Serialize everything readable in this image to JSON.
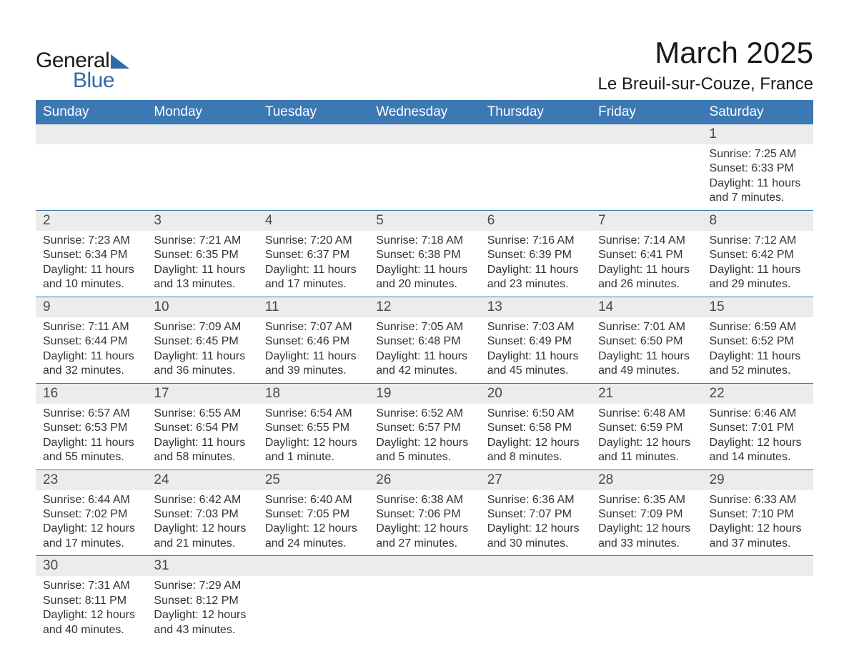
{
  "brand": {
    "word1": "General",
    "word2": "Blue",
    "accent_color": "#2f6ba8"
  },
  "title": "March 2025",
  "location": "Le Breuil-sur-Couze, France",
  "styling": {
    "header_bg": "#3c78b4",
    "header_fg": "#ffffff",
    "daynum_bg": "#ececec",
    "row_divider": "#3c78b4",
    "body_text": "#333333",
    "title_fontsize": 42,
    "location_fontsize": 24,
    "th_fontsize": 19,
    "daynum_fontsize": 19,
    "body_fontsize": 16,
    "page_bg": "#ffffff"
  },
  "weekdays": [
    "Sunday",
    "Monday",
    "Tuesday",
    "Wednesday",
    "Thursday",
    "Friday",
    "Saturday"
  ],
  "labels": {
    "sunrise": "Sunrise: ",
    "sunset": "Sunset: ",
    "daylight": "Daylight: "
  },
  "weeks": [
    [
      {
        "day": ""
      },
      {
        "day": ""
      },
      {
        "day": ""
      },
      {
        "day": ""
      },
      {
        "day": ""
      },
      {
        "day": ""
      },
      {
        "day": "1",
        "sunrise": "7:25 AM",
        "sunset": "6:33 PM",
        "daylight": "11 hours and 7 minutes."
      }
    ],
    [
      {
        "day": "2",
        "sunrise": "7:23 AM",
        "sunset": "6:34 PM",
        "daylight": "11 hours and 10 minutes."
      },
      {
        "day": "3",
        "sunrise": "7:21 AM",
        "sunset": "6:35 PM",
        "daylight": "11 hours and 13 minutes."
      },
      {
        "day": "4",
        "sunrise": "7:20 AM",
        "sunset": "6:37 PM",
        "daylight": "11 hours and 17 minutes."
      },
      {
        "day": "5",
        "sunrise": "7:18 AM",
        "sunset": "6:38 PM",
        "daylight": "11 hours and 20 minutes."
      },
      {
        "day": "6",
        "sunrise": "7:16 AM",
        "sunset": "6:39 PM",
        "daylight": "11 hours and 23 minutes."
      },
      {
        "day": "7",
        "sunrise": "7:14 AM",
        "sunset": "6:41 PM",
        "daylight": "11 hours and 26 minutes."
      },
      {
        "day": "8",
        "sunrise": "7:12 AM",
        "sunset": "6:42 PM",
        "daylight": "11 hours and 29 minutes."
      }
    ],
    [
      {
        "day": "9",
        "sunrise": "7:11 AM",
        "sunset": "6:44 PM",
        "daylight": "11 hours and 32 minutes."
      },
      {
        "day": "10",
        "sunrise": "7:09 AM",
        "sunset": "6:45 PM",
        "daylight": "11 hours and 36 minutes."
      },
      {
        "day": "11",
        "sunrise": "7:07 AM",
        "sunset": "6:46 PM",
        "daylight": "11 hours and 39 minutes."
      },
      {
        "day": "12",
        "sunrise": "7:05 AM",
        "sunset": "6:48 PM",
        "daylight": "11 hours and 42 minutes."
      },
      {
        "day": "13",
        "sunrise": "7:03 AM",
        "sunset": "6:49 PM",
        "daylight": "11 hours and 45 minutes."
      },
      {
        "day": "14",
        "sunrise": "7:01 AM",
        "sunset": "6:50 PM",
        "daylight": "11 hours and 49 minutes."
      },
      {
        "day": "15",
        "sunrise": "6:59 AM",
        "sunset": "6:52 PM",
        "daylight": "11 hours and 52 minutes."
      }
    ],
    [
      {
        "day": "16",
        "sunrise": "6:57 AM",
        "sunset": "6:53 PM",
        "daylight": "11 hours and 55 minutes."
      },
      {
        "day": "17",
        "sunrise": "6:55 AM",
        "sunset": "6:54 PM",
        "daylight": "11 hours and 58 minutes."
      },
      {
        "day": "18",
        "sunrise": "6:54 AM",
        "sunset": "6:55 PM",
        "daylight": "12 hours and 1 minute."
      },
      {
        "day": "19",
        "sunrise": "6:52 AM",
        "sunset": "6:57 PM",
        "daylight": "12 hours and 5 minutes."
      },
      {
        "day": "20",
        "sunrise": "6:50 AM",
        "sunset": "6:58 PM",
        "daylight": "12 hours and 8 minutes."
      },
      {
        "day": "21",
        "sunrise": "6:48 AM",
        "sunset": "6:59 PM",
        "daylight": "12 hours and 11 minutes."
      },
      {
        "day": "22",
        "sunrise": "6:46 AM",
        "sunset": "7:01 PM",
        "daylight": "12 hours and 14 minutes."
      }
    ],
    [
      {
        "day": "23",
        "sunrise": "6:44 AM",
        "sunset": "7:02 PM",
        "daylight": "12 hours and 17 minutes."
      },
      {
        "day": "24",
        "sunrise": "6:42 AM",
        "sunset": "7:03 PM",
        "daylight": "12 hours and 21 minutes."
      },
      {
        "day": "25",
        "sunrise": "6:40 AM",
        "sunset": "7:05 PM",
        "daylight": "12 hours and 24 minutes."
      },
      {
        "day": "26",
        "sunrise": "6:38 AM",
        "sunset": "7:06 PM",
        "daylight": "12 hours and 27 minutes."
      },
      {
        "day": "27",
        "sunrise": "6:36 AM",
        "sunset": "7:07 PM",
        "daylight": "12 hours and 30 minutes."
      },
      {
        "day": "28",
        "sunrise": "6:35 AM",
        "sunset": "7:09 PM",
        "daylight": "12 hours and 33 minutes."
      },
      {
        "day": "29",
        "sunrise": "6:33 AM",
        "sunset": "7:10 PM",
        "daylight": "12 hours and 37 minutes."
      }
    ],
    [
      {
        "day": "30",
        "sunrise": "7:31 AM",
        "sunset": "8:11 PM",
        "daylight": "12 hours and 40 minutes."
      },
      {
        "day": "31",
        "sunrise": "7:29 AM",
        "sunset": "8:12 PM",
        "daylight": "12 hours and 43 minutes."
      },
      {
        "day": ""
      },
      {
        "day": ""
      },
      {
        "day": ""
      },
      {
        "day": ""
      },
      {
        "day": ""
      }
    ]
  ]
}
